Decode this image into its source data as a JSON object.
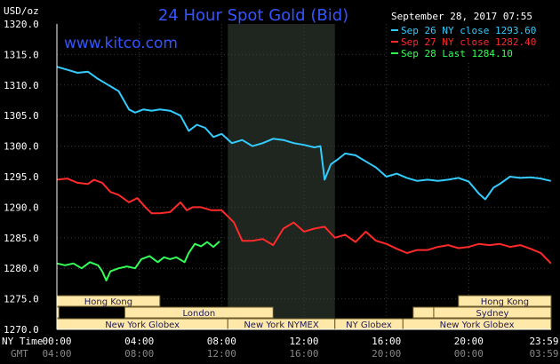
{
  "chart_data": {
    "type": "line",
    "title": "24 Hour Spot Gold (Bid)",
    "brand": "www.kitco.com",
    "ylabel": "USD/oz",
    "timestamp": "September 28, 2017 07:55",
    "ylim": [
      1270,
      1320
    ],
    "y_ticks": [
      "1320.0",
      "1315.0",
      "1310.0",
      "1305.0",
      "1300.0",
      "1295.0",
      "1290.0",
      "1285.0",
      "1280.0",
      "1275.0",
      "1270.0"
    ],
    "x_range_hours": [
      0,
      24
    ],
    "x_row_label_ny": "NY Time",
    "x_row_label_gmt": "GMT",
    "x_ticks_ny": [
      "00:00",
      "04:00",
      "08:00",
      "12:00",
      "16:00",
      "20:00",
      "23:59"
    ],
    "x_ticks_gmt": [
      "04:00",
      "08:00",
      "12:00",
      "16:00",
      "20:00",
      "00:00",
      "03:59"
    ],
    "markets": [
      {
        "label": "Hong Kong",
        "segments": [
          [
            0,
            5
          ],
          [
            19.5,
            24
          ]
        ]
      },
      {
        "label": "London",
        "segments": [
          [
            0,
            0.1
          ],
          [
            3.3,
            10.5
          ],
          [
            17.3,
            18.3
          ]
        ]
      },
      {
        "label": "New York Globex",
        "segments": [
          [
            0,
            8.3
          ],
          [
            16.8,
            24
          ]
        ]
      },
      {
        "label": "New York NYMEX",
        "segments": [
          [
            8.3,
            13.5
          ]
        ]
      },
      {
        "label": "NY Globex",
        "segments": [
          [
            13.5,
            16.8
          ]
        ]
      },
      {
        "label": "Sydney",
        "segments": [
          [
            18.3,
            24
          ]
        ]
      }
    ],
    "series": [
      {
        "name": "Sep 26 NY close 1293.60",
        "color": "#33ccff",
        "points": [
          [
            0,
            1313.0
          ],
          [
            0.5,
            1312.5
          ],
          [
            1,
            1312.0
          ],
          [
            1.5,
            1312.2
          ],
          [
            2,
            1311.0
          ],
          [
            2.5,
            1310.0
          ],
          [
            3,
            1309.0
          ],
          [
            3.5,
            1306.0
          ],
          [
            3.8,
            1305.5
          ],
          [
            4.2,
            1306.0
          ],
          [
            4.6,
            1305.8
          ],
          [
            5,
            1306.0
          ],
          [
            5.5,
            1305.8
          ],
          [
            6,
            1305.0
          ],
          [
            6.4,
            1302.5
          ],
          [
            6.8,
            1303.5
          ],
          [
            7.2,
            1303.0
          ],
          [
            7.6,
            1301.5
          ],
          [
            8,
            1302.0
          ],
          [
            8.5,
            1300.5
          ],
          [
            9,
            1301.0
          ],
          [
            9.5,
            1300.0
          ],
          [
            10,
            1300.5
          ],
          [
            10.5,
            1301.2
          ],
          [
            11,
            1301.0
          ],
          [
            11.5,
            1300.5
          ],
          [
            12,
            1300.2
          ],
          [
            12.5,
            1299.8
          ],
          [
            12.8,
            1300.0
          ],
          [
            13,
            1294.5
          ],
          [
            13.3,
            1297.0
          ],
          [
            13.7,
            1298.0
          ],
          [
            14,
            1298.8
          ],
          [
            14.5,
            1298.5
          ],
          [
            15,
            1297.5
          ],
          [
            15.5,
            1296.5
          ],
          [
            16,
            1295.0
          ],
          [
            16.5,
            1295.5
          ],
          [
            17,
            1294.8
          ],
          [
            17.5,
            1294.3
          ],
          [
            18,
            1294.5
          ],
          [
            18.5,
            1294.3
          ],
          [
            19,
            1294.5
          ],
          [
            19.5,
            1294.8
          ],
          [
            20,
            1294.2
          ],
          [
            20.5,
            1292.2
          ],
          [
            20.8,
            1291.3
          ],
          [
            21.2,
            1293.2
          ],
          [
            21.5,
            1293.8
          ],
          [
            22,
            1295.0
          ],
          [
            22.5,
            1294.8
          ],
          [
            23,
            1294.9
          ],
          [
            23.5,
            1294.7
          ],
          [
            23.99,
            1294.3
          ]
        ]
      },
      {
        "name": "Sep 27 NY close 1282.40",
        "color": "#ff2a2a",
        "points": [
          [
            0,
            1294.5
          ],
          [
            0.5,
            1294.7
          ],
          [
            1,
            1294.0
          ],
          [
            1.5,
            1293.8
          ],
          [
            1.8,
            1294.5
          ],
          [
            2.2,
            1294.0
          ],
          [
            2.6,
            1292.5
          ],
          [
            3,
            1292.0
          ],
          [
            3.5,
            1290.8
          ],
          [
            3.9,
            1291.5
          ],
          [
            4.3,
            1290.0
          ],
          [
            4.6,
            1289.0
          ],
          [
            5,
            1289.0
          ],
          [
            5.5,
            1289.2
          ],
          [
            6,
            1290.8
          ],
          [
            6.3,
            1289.5
          ],
          [
            6.6,
            1290.0
          ],
          [
            7,
            1290.0
          ],
          [
            7.5,
            1289.5
          ],
          [
            8,
            1289.5
          ],
          [
            8.3,
            1288.5
          ],
          [
            8.6,
            1287.5
          ],
          [
            9,
            1284.5
          ],
          [
            9.5,
            1284.5
          ],
          [
            10,
            1284.8
          ],
          [
            10.5,
            1283.8
          ],
          [
            11,
            1286.5
          ],
          [
            11.5,
            1287.5
          ],
          [
            12,
            1286.0
          ],
          [
            12.5,
            1286.5
          ],
          [
            13,
            1286.8
          ],
          [
            13.5,
            1285.0
          ],
          [
            14,
            1285.5
          ],
          [
            14.5,
            1284.3
          ],
          [
            15,
            1286.0
          ],
          [
            15.5,
            1284.5
          ],
          [
            16,
            1284.0
          ],
          [
            16.5,
            1283.2
          ],
          [
            17,
            1282.5
          ],
          [
            17.5,
            1283.0
          ],
          [
            18,
            1283.0
          ],
          [
            18.5,
            1283.5
          ],
          [
            19,
            1283.8
          ],
          [
            19.5,
            1283.3
          ],
          [
            20,
            1283.5
          ],
          [
            20.5,
            1284.0
          ],
          [
            21,
            1283.8
          ],
          [
            21.5,
            1284.0
          ],
          [
            22,
            1283.5
          ],
          [
            22.5,
            1283.8
          ],
          [
            23,
            1283.2
          ],
          [
            23.5,
            1282.5
          ],
          [
            23.99,
            1280.8
          ]
        ]
      },
      {
        "name": "Sep 28 Last 1284.10",
        "color": "#33ff55",
        "points": [
          [
            0,
            1280.8
          ],
          [
            0.4,
            1280.5
          ],
          [
            0.8,
            1280.8
          ],
          [
            1.2,
            1280.0
          ],
          [
            1.6,
            1281.0
          ],
          [
            2,
            1280.5
          ],
          [
            2.2,
            1279.5
          ],
          [
            2.4,
            1278.0
          ],
          [
            2.6,
            1279.5
          ],
          [
            3,
            1280.0
          ],
          [
            3.4,
            1280.3
          ],
          [
            3.8,
            1280.0
          ],
          [
            4.1,
            1281.5
          ],
          [
            4.5,
            1282.0
          ],
          [
            4.9,
            1281.0
          ],
          [
            5.2,
            1281.8
          ],
          [
            5.5,
            1281.5
          ],
          [
            5.8,
            1281.8
          ],
          [
            6.2,
            1281.0
          ],
          [
            6.4,
            1282.5
          ],
          [
            6.7,
            1284.0
          ],
          [
            7,
            1283.6
          ],
          [
            7.3,
            1284.3
          ],
          [
            7.6,
            1283.5
          ],
          [
            7.9,
            1284.4
          ]
        ]
      }
    ]
  }
}
